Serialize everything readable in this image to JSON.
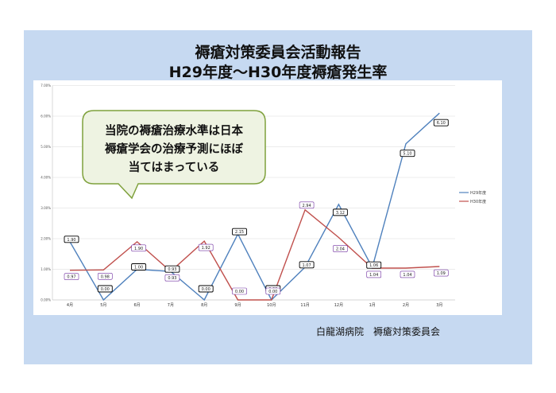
{
  "header": {
    "title_line1": "褥瘡対策委員会活動報告",
    "title_line2": "H29年度～H30年度褥瘡発生率"
  },
  "callout": {
    "lines": [
      "当院の褥瘡治療水準は日本",
      "褥瘡学会の治療予測にほぼ",
      "当てはまっている"
    ]
  },
  "footer": {
    "organization": "白龍湖病院　褥瘡対策委員会"
  },
  "colors": {
    "panel": "#c6d9f1",
    "h29": "#4f81bd",
    "h30": "#c0504d",
    "callout_fill": "#eef3e2",
    "callout_stroke": "#7fa13c"
  },
  "chart_data": {
    "type": "line",
    "title": "",
    "xlabel": "",
    "ylabel": "",
    "categories": [
      "4月",
      "5月",
      "6月",
      "7月",
      "8月",
      "9月",
      "10月",
      "11月",
      "12月",
      "1月",
      "2月",
      "3月"
    ],
    "ylim": [
      0,
      7
    ],
    "yticks": [
      "0.00%",
      "1.00%",
      "2.00%",
      "3.00%",
      "4.00%",
      "5.00%",
      "6.00%",
      "7.00%"
    ],
    "grid": true,
    "legend": "right",
    "series": [
      {
        "name": "H29年度",
        "values": [
          1.9,
          0.0,
          1.0,
          0.93,
          0.0,
          2.15,
          0.0,
          1.07,
          3.12,
          1.06,
          5.1,
          6.1
        ]
      },
      {
        "name": "H30年度",
        "values": [
          0.97,
          0.98,
          1.9,
          0.93,
          1.92,
          0.0,
          0.0,
          2.94,
          2.04,
          1.04,
          1.04,
          1.09
        ]
      }
    ]
  }
}
